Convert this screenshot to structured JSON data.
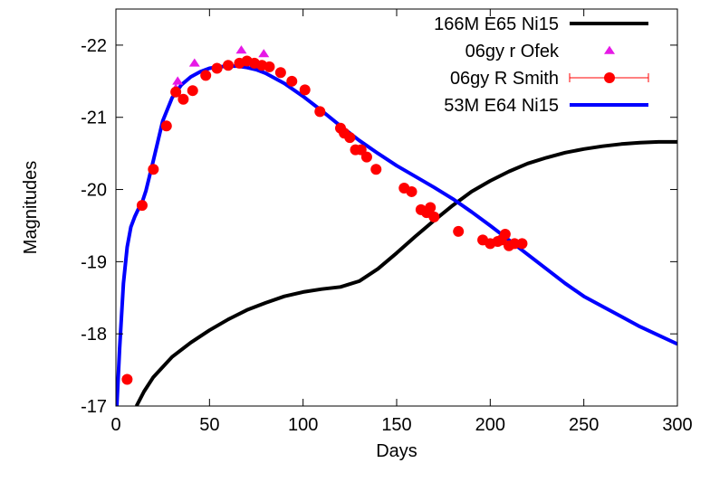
{
  "chart_data": {
    "type": "scatter",
    "xlabel": "Days",
    "ylabel": "Magnitudes",
    "xlim": [
      0,
      300
    ],
    "ylim": [
      -17,
      -22.5
    ],
    "y_reversed": true,
    "x_ticks": [
      "0",
      "50",
      "100",
      "150",
      "200",
      "250",
      "300"
    ],
    "y_ticks": [
      "-17",
      "-18",
      "-19",
      "-20",
      "-21",
      "-22"
    ],
    "x_tick_values": [
      0,
      50,
      100,
      150,
      200,
      250,
      300
    ],
    "y_tick_values": [
      -17,
      -18,
      -19,
      -20,
      -21,
      -22
    ],
    "grid": false,
    "legend_position": "top-right",
    "series": [
      {
        "name": "166M E65 Ni15",
        "kind": "line",
        "color": "#000000",
        "x": [
          11,
          15,
          20,
          30,
          40,
          50,
          60,
          70,
          80,
          90,
          100,
          110,
          120,
          130,
          140,
          150,
          160,
          170,
          180,
          190,
          200,
          210,
          220,
          230,
          240,
          250,
          260,
          270,
          280,
          290,
          300
        ],
        "y": [
          -17.0,
          -17.2,
          -17.4,
          -17.68,
          -17.88,
          -18.05,
          -18.2,
          -18.33,
          -18.43,
          -18.52,
          -18.58,
          -18.62,
          -18.65,
          -18.73,
          -18.9,
          -19.12,
          -19.35,
          -19.57,
          -19.78,
          -19.97,
          -20.12,
          -20.25,
          -20.36,
          -20.44,
          -20.51,
          -20.56,
          -20.6,
          -20.63,
          -20.65,
          -20.66,
          -20.66
        ]
      },
      {
        "name": "06gy r Ofek",
        "kind": "points",
        "marker": "triangle",
        "color": "#e619e6",
        "x": [
          32,
          33,
          42,
          67,
          79
        ],
        "y": [
          -21.4,
          -21.5,
          -21.75,
          -21.93,
          -21.88
        ]
      },
      {
        "name": "06gy R Smith",
        "kind": "points",
        "marker": "circle",
        "color": "#ff0000",
        "x": [
          6,
          14,
          20,
          27,
          32,
          36,
          41,
          48,
          54,
          60,
          66,
          70,
          74,
          78,
          82,
          88,
          94,
          101,
          109,
          120,
          122,
          125,
          128,
          131,
          134,
          139,
          154,
          158,
          163,
          166,
          168,
          170,
          183,
          196,
          200,
          204,
          206,
          208,
          210,
          213,
          217
        ],
        "y": [
          -17.37,
          -19.78,
          -20.28,
          -20.88,
          -21.35,
          -21.25,
          -21.37,
          -21.58,
          -21.68,
          -21.72,
          -21.75,
          -21.78,
          -21.75,
          -21.72,
          -21.7,
          -21.62,
          -21.5,
          -21.38,
          -21.08,
          -20.85,
          -20.78,
          -20.72,
          -20.55,
          -20.55,
          -20.45,
          -20.28,
          -20.02,
          -19.97,
          -19.72,
          -19.68,
          -19.75,
          -19.62,
          -19.42,
          -19.3,
          -19.25,
          -19.28,
          -19.3,
          -19.38,
          -19.22,
          -19.25,
          -19.25
        ]
      },
      {
        "name": "53M E64 Ni15",
        "kind": "line",
        "color": "#0000ff",
        "x": [
          0.5,
          2,
          4,
          6,
          8,
          10,
          12,
          14,
          16,
          20,
          25,
          30,
          35,
          40,
          45,
          50,
          55,
          60,
          65,
          70,
          75,
          80,
          90,
          100,
          110,
          120,
          130,
          140,
          150,
          160,
          170,
          180,
          190,
          200,
          210,
          220,
          230,
          240,
          250,
          260,
          270,
          280,
          290,
          300
        ],
        "y": [
          -17.0,
          -17.8,
          -18.7,
          -19.2,
          -19.48,
          -19.62,
          -19.73,
          -19.82,
          -19.98,
          -20.4,
          -20.95,
          -21.27,
          -21.45,
          -21.56,
          -21.63,
          -21.68,
          -21.7,
          -21.71,
          -21.71,
          -21.69,
          -21.66,
          -21.61,
          -21.47,
          -21.29,
          -21.09,
          -20.88,
          -20.68,
          -20.5,
          -20.33,
          -20.18,
          -20.03,
          -19.87,
          -19.69,
          -19.5,
          -19.3,
          -19.1,
          -18.9,
          -18.7,
          -18.52,
          -18.38,
          -18.24,
          -18.1,
          -17.98,
          -17.86
        ]
      }
    ]
  }
}
